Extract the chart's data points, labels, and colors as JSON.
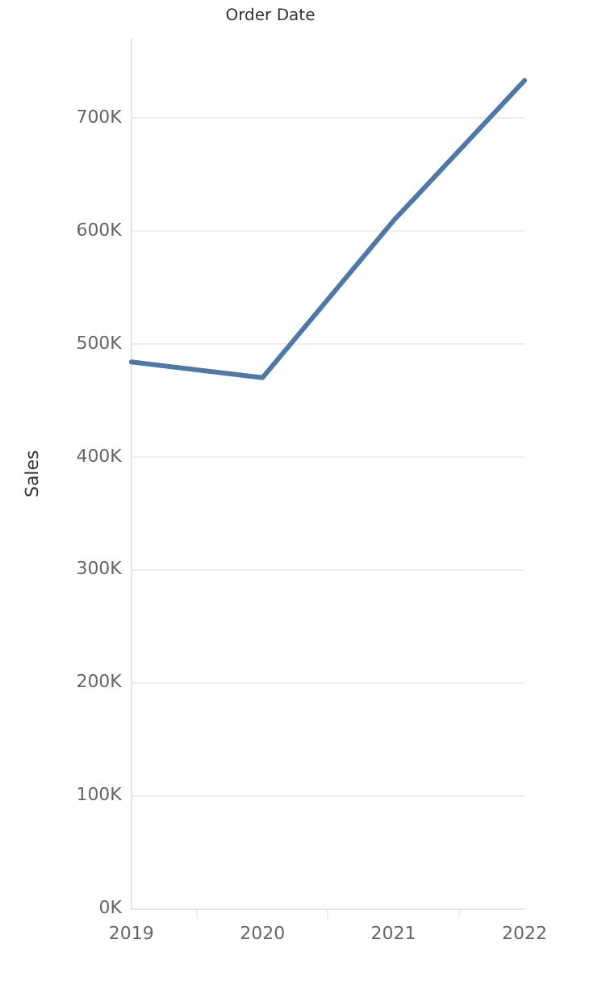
{
  "chart_data": {
    "type": "line",
    "title": "Order Date",
    "ylabel": "Sales",
    "categories": [
      "2019",
      "2020",
      "2021",
      "2022"
    ],
    "series": [
      {
        "color": "#4e79a7",
        "values": [
          484000,
          470000,
          609000,
          733000
        ]
      }
    ],
    "ylim": [
      0,
      770000
    ],
    "yticks": [
      {
        "value": 0,
        "label": "0K"
      },
      {
        "value": 100000,
        "label": "100K"
      },
      {
        "value": 200000,
        "label": "200K"
      },
      {
        "value": 300000,
        "label": "300K"
      },
      {
        "value": 400000,
        "label": "400K"
      },
      {
        "value": 500000,
        "label": "500K"
      },
      {
        "value": 600000,
        "label": "600K"
      },
      {
        "value": 700000,
        "label": "700K"
      }
    ],
    "grid": "y",
    "legend": false,
    "marker": "none",
    "line_style": "solid"
  }
}
